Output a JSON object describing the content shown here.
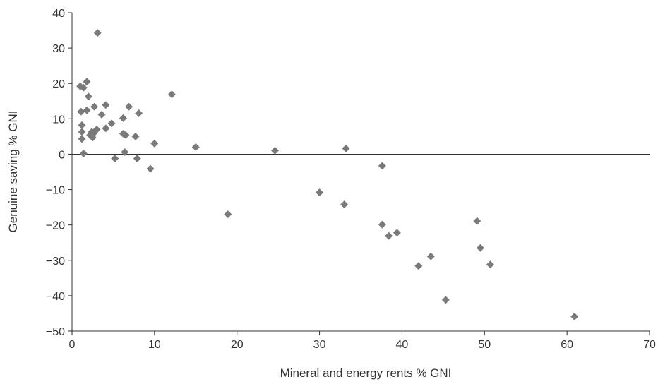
{
  "chart_data": {
    "type": "scatter",
    "title": "",
    "xlabel": "Mineral and energy rents % GNI",
    "ylabel": "Genuine saving % GNI",
    "xlim": [
      0,
      70
    ],
    "ylim": [
      -50,
      40
    ],
    "xticks": [
      0,
      10,
      20,
      30,
      40,
      50,
      60,
      70
    ],
    "yticks": [
      -50,
      -40,
      -30,
      -20,
      -10,
      0,
      10,
      20,
      30,
      40
    ],
    "xtick_labels": [
      "0",
      "10",
      "20",
      "30",
      "40",
      "50",
      "60",
      "70"
    ],
    "ytick_labels": [
      "−50",
      "−40",
      "−30",
      "−20",
      "−10",
      "0",
      "10",
      "20",
      "30",
      "40"
    ],
    "zero_line": true,
    "grid": false,
    "marker": "diamond",
    "point_color": "#7a7a7a",
    "series": [
      {
        "points": [
          [
            3.1,
            34.3
          ],
          [
            1.0,
            19.2
          ],
          [
            1.4,
            18.8
          ],
          [
            1.8,
            20.5
          ],
          [
            12.1,
            16.9
          ],
          [
            2.0,
            16.3
          ],
          [
            4.1,
            13.9
          ],
          [
            2.7,
            13.4
          ],
          [
            6.9,
            13.4
          ],
          [
            1.8,
            12.4
          ],
          [
            1.1,
            12.0
          ],
          [
            8.1,
            11.6
          ],
          [
            3.6,
            11.2
          ],
          [
            6.2,
            10.2
          ],
          [
            4.8,
            8.7
          ],
          [
            1.2,
            8.2
          ],
          [
            4.1,
            7.3
          ],
          [
            3.0,
            7.0
          ],
          [
            1.2,
            6.3
          ],
          [
            2.4,
            6.3
          ],
          [
            2.7,
            6.1
          ],
          [
            6.2,
            5.8
          ],
          [
            6.5,
            5.4
          ],
          [
            2.2,
            5.4
          ],
          [
            2.5,
            4.7
          ],
          [
            7.7,
            5.0
          ],
          [
            1.2,
            4.3
          ],
          [
            10.0,
            3.0
          ],
          [
            15.0,
            2.0
          ],
          [
            24.6,
            1.0
          ],
          [
            33.2,
            1.6
          ],
          [
            6.4,
            0.6
          ],
          [
            1.4,
            0.2
          ],
          [
            5.2,
            -1.2
          ],
          [
            7.9,
            -1.2
          ],
          [
            9.5,
            -4.1
          ],
          [
            37.6,
            -3.3
          ],
          [
            30.0,
            -10.8
          ],
          [
            18.9,
            -17.0
          ],
          [
            33.0,
            -14.2
          ],
          [
            37.6,
            -19.9
          ],
          [
            39.4,
            -22.2
          ],
          [
            38.4,
            -23.1
          ],
          [
            49.1,
            -18.9
          ],
          [
            49.5,
            -26.5
          ],
          [
            43.5,
            -28.9
          ],
          [
            42.0,
            -31.6
          ],
          [
            50.7,
            -31.2
          ],
          [
            45.3,
            -41.2
          ],
          [
            60.9,
            -45.9
          ]
        ]
      }
    ]
  }
}
